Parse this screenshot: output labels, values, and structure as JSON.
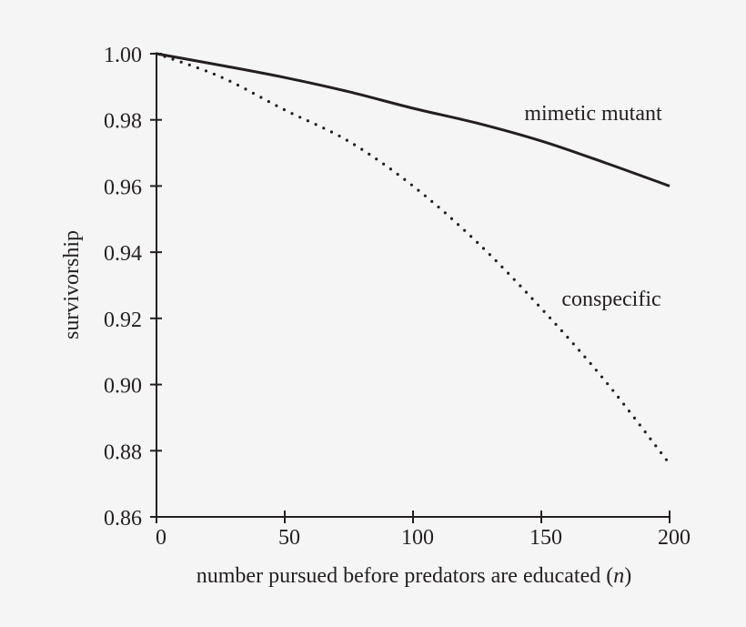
{
  "chart_data": {
    "type": "line",
    "title": "",
    "xlabel": "number pursued before predators are educated (n)",
    "xlabel_main": "number pursued before predators are educated (",
    "xlabel_var": "n",
    "xlabel_close": ")",
    "ylabel": "survivorship",
    "xlim": [
      0,
      200
    ],
    "ylim": [
      0.86,
      1.0
    ],
    "xticks": [
      0,
      50,
      100,
      150,
      200
    ],
    "xtick_labels": [
      "0",
      "50",
      "100",
      "150",
      "200"
    ],
    "yticks": [
      0.86,
      0.88,
      0.9,
      0.92,
      0.94,
      0.96,
      0.98,
      1.0
    ],
    "ytick_labels": [
      "0.86",
      "0.88",
      "0.90",
      "0.92",
      "0.94",
      "0.96",
      "0.98",
      "1.00"
    ],
    "grid": false,
    "legend": "inline annotations",
    "x": [
      0,
      25,
      50,
      75,
      100,
      125,
      150,
      175,
      200
    ],
    "series": [
      {
        "name": "mimetic mutant",
        "style": "solid",
        "values": [
          1.0,
          0.9965,
          0.9928,
          0.9885,
          0.9835,
          0.979,
          0.9736,
          0.967,
          0.96
        ]
      },
      {
        "name": "conspecific",
        "style": "dotted",
        "values": [
          1.0,
          0.993,
          0.983,
          0.9735,
          0.96,
          0.943,
          0.923,
          0.901,
          0.876
        ]
      }
    ],
    "annotations": [
      {
        "text": "mimetic mutant",
        "x": 150,
        "y": 0.978
      },
      {
        "text": "conspecific",
        "x": 162,
        "y": 0.922
      }
    ]
  },
  "labels": {
    "series_0": "mimetic mutant",
    "series_1": "conspecific"
  }
}
